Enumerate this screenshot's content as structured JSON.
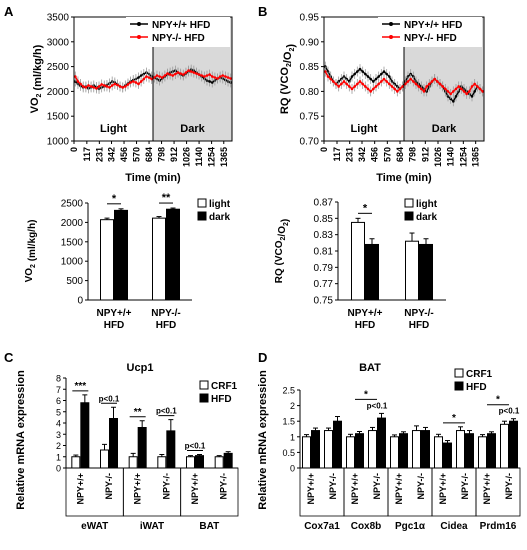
{
  "chart_data": [
    {
      "panel": "A",
      "type": "line",
      "ylabel": "VO2 (ml/kg/h)",
      "xlabel": "Time (min)",
      "ylim": [
        1000,
        3500
      ],
      "yticks": [
        1000,
        1500,
        2000,
        2500,
        3000,
        3500
      ],
      "xticks": [
        "0",
        "117",
        "231",
        "342",
        "456",
        "570",
        "684",
        "798",
        "912",
        "1026",
        "1140",
        "1254",
        "1365"
      ],
      "xlim": [
        0,
        1440
      ],
      "dark_start": 720,
      "zone_labels": [
        "Light",
        "Dark"
      ],
      "series": [
        {
          "name": "NPY+/+ HFD",
          "color": "#000000",
          "values": [
            2200,
            2150,
            2110,
            2080,
            2100,
            2060,
            2080,
            2120,
            2090,
            2050,
            2080,
            2100,
            2130,
            2160,
            2200,
            2180,
            2140,
            2100,
            2080,
            2120,
            2160,
            2200,
            2230,
            2250,
            2280,
            2320,
            2350,
            2380,
            2350,
            2300,
            2280,
            2250,
            2220,
            2260,
            2300,
            2340,
            2380,
            2400,
            2420,
            2380,
            2340,
            2320,
            2360,
            2400,
            2440,
            2420,
            2380,
            2340,
            2300,
            2260,
            2220,
            2200,
            2180,
            2220,
            2260,
            2280,
            2260,
            2230,
            2200,
            2180
          ]
        },
        {
          "name": "NPY-/- HFD",
          "color": "#ff0000",
          "values": [
            2300,
            2200,
            2150,
            2100,
            2080,
            2120,
            2100,
            2080,
            2060,
            2100,
            2140,
            2120,
            2100,
            2080,
            2120,
            2150,
            2130,
            2100,
            2080,
            2100,
            2140,
            2180,
            2200,
            2180,
            2150,
            2200,
            2250,
            2300,
            2280,
            2250,
            2280,
            2320,
            2300,
            2280,
            2320,
            2360,
            2340,
            2320,
            2350,
            2380,
            2360,
            2340,
            2380,
            2420,
            2400,
            2380,
            2360,
            2340,
            2320,
            2300,
            2320,
            2340,
            2300,
            2280,
            2260,
            2300,
            2320,
            2300,
            2280,
            2260
          ]
        }
      ]
    },
    {
      "panel": "B",
      "type": "line",
      "ylabel": "RQ (VCO2/O2)",
      "xlabel": "Time (min)",
      "ylim": [
        0.7,
        0.95
      ],
      "yticks": [
        "0.70",
        "0.75",
        "0.80",
        "0.85",
        "0.90",
        "0.95"
      ],
      "xticks": [
        "0",
        "117",
        "231",
        "342",
        "456",
        "570",
        "684",
        "798",
        "912",
        "1026",
        "1140",
        "1254",
        "1365"
      ],
      "xlim": [
        0,
        1440
      ],
      "dark_start": 720,
      "zone_labels": [
        "Light",
        "Dark"
      ],
      "series": [
        {
          "name": "NPY+/+ HFD",
          "color": "#000000",
          "values": [
            0.85,
            0.84,
            0.83,
            0.82,
            0.815,
            0.82,
            0.825,
            0.83,
            0.825,
            0.82,
            0.83,
            0.835,
            0.84,
            0.845,
            0.84,
            0.835,
            0.83,
            0.825,
            0.82,
            0.825,
            0.83,
            0.835,
            0.84,
            0.835,
            0.83,
            0.82,
            0.815,
            0.81,
            0.805,
            0.81,
            0.82,
            0.83,
            0.835,
            0.83,
            0.82,
            0.815,
            0.81,
            0.805,
            0.8,
            0.81,
            0.82,
            0.825,
            0.82,
            0.815,
            0.81,
            0.8,
            0.79,
            0.785,
            0.78,
            0.79,
            0.8,
            0.81,
            0.805,
            0.8,
            0.795,
            0.79,
            0.8,
            0.81,
            0.805,
            0.8
          ]
        },
        {
          "name": "NPY-/- HFD",
          "color": "#ff0000",
          "values": [
            0.84,
            0.83,
            0.825,
            0.82,
            0.815,
            0.81,
            0.815,
            0.82,
            0.815,
            0.81,
            0.805,
            0.81,
            0.815,
            0.82,
            0.815,
            0.81,
            0.805,
            0.8,
            0.805,
            0.81,
            0.815,
            0.82,
            0.825,
            0.82,
            0.815,
            0.81,
            0.805,
            0.8,
            0.805,
            0.81,
            0.815,
            0.82,
            0.825,
            0.82,
            0.815,
            0.81,
            0.805,
            0.8,
            0.81,
            0.815,
            0.82,
            0.825,
            0.82,
            0.815,
            0.81,
            0.805,
            0.8,
            0.795,
            0.8,
            0.805,
            0.81,
            0.805,
            0.8,
            0.795,
            0.8,
            0.81,
            0.815,
            0.81,
            0.805,
            0.8
          ]
        }
      ]
    },
    {
      "panel": "A",
      "type": "bar",
      "ylabel": "VO2 (ml/kg/h)",
      "ylim": [
        0,
        2500
      ],
      "yticks": [
        0,
        500,
        1000,
        1500,
        2000,
        2500
      ],
      "categories": [
        "NPY+/+ HFD",
        "NPY-/- HFD"
      ],
      "series": [
        {
          "name": "light",
          "color": "#ffffff",
          "values": [
            2070,
            2110
          ],
          "errors": [
            40,
            40
          ]
        },
        {
          "name": "dark",
          "color": "#000000",
          "values": [
            2310,
            2340
          ],
          "errors": [
            40,
            30
          ]
        }
      ],
      "significance": [
        "*",
        "**"
      ]
    },
    {
      "panel": "B",
      "type": "bar",
      "ylabel": "RQ (VCO2/O2)",
      "ylim": [
        0.75,
        0.87
      ],
      "yticks": [
        "0.75",
        "0.77",
        "0.79",
        "0.81",
        "0.83",
        "0.85",
        "0.87"
      ],
      "categories": [
        "NPY+/+ HFD",
        "NPY-/- HFD"
      ],
      "series": [
        {
          "name": "light",
          "color": "#ffffff",
          "values": [
            0.845,
            0.822
          ],
          "errors": [
            0.005,
            0.01
          ]
        },
        {
          "name": "dark",
          "color": "#000000",
          "values": [
            0.818,
            0.818
          ],
          "errors": [
            0.007,
            0.007
          ]
        }
      ],
      "significance": [
        "*",
        ""
      ]
    },
    {
      "panel": "C",
      "type": "bar",
      "title": "Ucp1",
      "ylabel": "Relative mRNA expression",
      "ylim": [
        0,
        8
      ],
      "yticks": [
        0,
        1,
        2,
        3,
        4,
        5,
        6,
        7,
        8
      ],
      "categories": [
        "NPY+/+",
        "NPY-/-",
        "NPY+/+",
        "NPY-/-",
        "NPY+/+",
        "NPY-/-"
      ],
      "groups": [
        "eWAT",
        "iWAT",
        "BAT"
      ],
      "series": [
        {
          "name": "CRF1",
          "color": "#ffffff",
          "values": [
            1.0,
            1.6,
            1.0,
            1.0,
            1.0,
            1.0
          ],
          "errors": [
            0.15,
            0.5,
            0.3,
            0.2,
            0.1,
            0.1
          ]
        },
        {
          "name": "HFD",
          "color": "#000000",
          "values": [
            5.8,
            4.4,
            3.6,
            3.3,
            1.1,
            1.3
          ],
          "errors": [
            0.7,
            1.0,
            0.6,
            1.0,
            0.1,
            0.15
          ]
        }
      ],
      "significance": [
        "***",
        "p<0.1",
        "**",
        "p<0.1",
        "p<0.1",
        ""
      ]
    },
    {
      "panel": "D",
      "type": "bar",
      "title": "BAT",
      "ylabel": "Relative mRNA expression",
      "ylim": [
        0,
        2.5
      ],
      "yticks": [
        "0",
        "0.5",
        "1",
        "1.5",
        "2",
        "2.5"
      ],
      "categories": [
        "NPY+/+",
        "NPY-/-",
        "NPY+/+",
        "NPY-/-",
        "NPY+/+",
        "NPY-/-",
        "NPY+/+",
        "NPY-/-",
        "NPY+/+",
        "NPY-/-"
      ],
      "groups": [
        "Cox7a1",
        "Cox8b",
        "Pgc1α",
        "Cidea",
        "Prdm16"
      ],
      "series": [
        {
          "name": "CRF1",
          "color": "#ffffff",
          "values": [
            1.0,
            1.2,
            1.0,
            1.2,
            1.0,
            1.2,
            1.0,
            1.2,
            1.0,
            1.4
          ],
          "errors": [
            0.07,
            0.08,
            0.08,
            0.1,
            0.06,
            0.15,
            0.08,
            0.12,
            0.07,
            0.1
          ]
        },
        {
          "name": "HFD",
          "color": "#000000",
          "values": [
            1.2,
            1.5,
            1.1,
            1.6,
            1.1,
            1.2,
            0.8,
            1.1,
            1.1,
            1.5
          ],
          "errors": [
            0.08,
            0.15,
            0.07,
            0.15,
            0.06,
            0.1,
            0.08,
            0.1,
            0.06,
            0.08
          ]
        }
      ],
      "significance_labels": [
        "*",
        "p<0.1",
        "*",
        "*",
        "p<0.1"
      ]
    }
  ],
  "panel_letters": [
    "A",
    "B",
    "C",
    "D"
  ]
}
